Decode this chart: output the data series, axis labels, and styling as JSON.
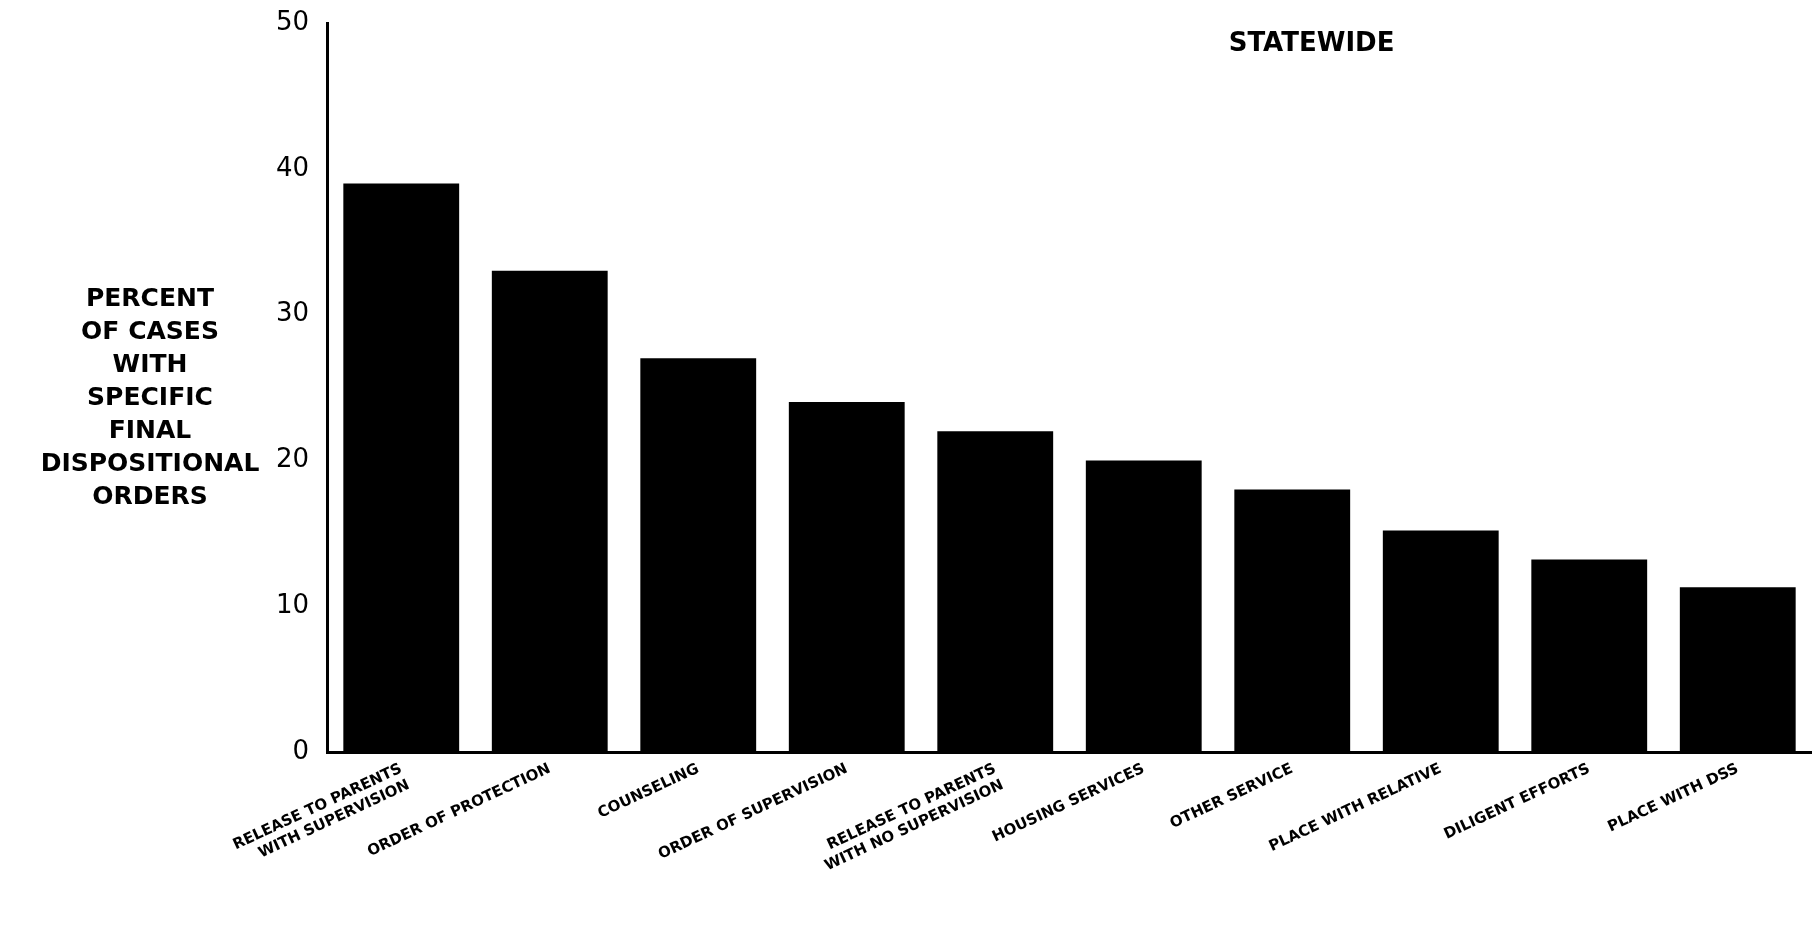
{
  "chart_data": {
    "type": "bar",
    "title": "STATEWIDE",
    "ylabel": "PERCENT\nOF CASES\nWITH\nSPECIFIC\nFINAL\nDISPOSITIONAL\nORDERS",
    "categories": [
      "RELEASE TO PARENTS\nWITH SUPERVISION",
      "ORDER OF PROTECTION",
      "COUNSELING",
      "ORDER OF SUPERVISION",
      "RELEASE TO PARENTS\nWITH NO SUPERVISION",
      "HOUSING SERVICES",
      "OTHER SERVICE",
      "PLACE WITH RELATIVE",
      "DILIGENT EFFORTS",
      "PLACE WITH DSS"
    ],
    "values": [
      39,
      33,
      27,
      24,
      22,
      20,
      18,
      15.2,
      13.2,
      11.3
    ],
    "color": "#000000",
    "ylim": [
      0,
      50
    ],
    "yticks": [
      0,
      10,
      20,
      30,
      40,
      50
    ],
    "grid": false,
    "legend": false
  }
}
